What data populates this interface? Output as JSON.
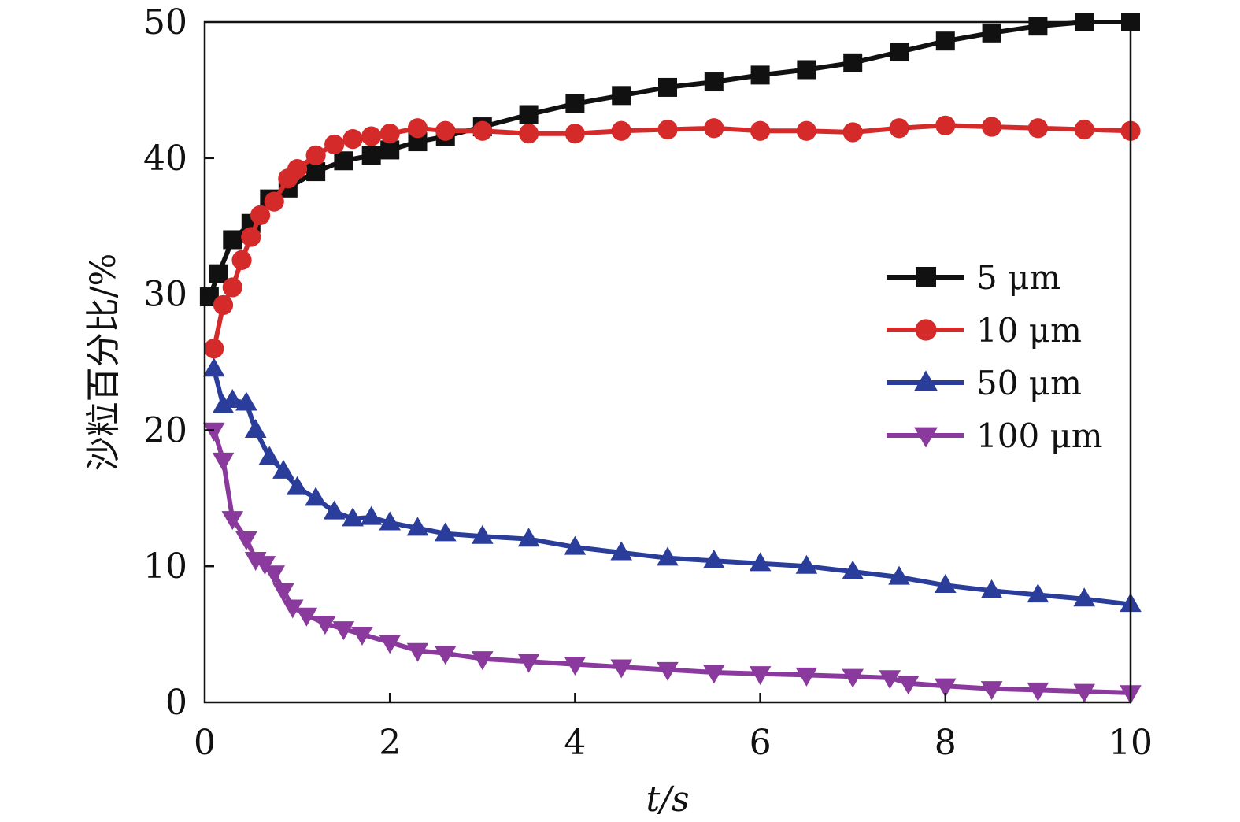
{
  "chart_data": {
    "type": "line",
    "title": "",
    "xlabel": "t/s",
    "ylabel": "沙粒百分比/%",
    "xlim": [
      0,
      10
    ],
    "ylim": [
      0,
      50
    ],
    "xticks": [
      "0",
      "2",
      "4",
      "6",
      "8",
      "10"
    ],
    "yticks": [
      "0",
      "10",
      "20",
      "30",
      "40",
      "50"
    ],
    "grid": false,
    "legend_position": "right-middle",
    "series": [
      {
        "name": "5 μm",
        "color": "#111111",
        "marker": "square",
        "x": [
          0.05,
          0.15,
          0.3,
          0.5,
          0.7,
          0.9,
          1.2,
          1.5,
          1.8,
          2.0,
          2.3,
          2.6,
          3.0,
          3.5,
          4.0,
          4.5,
          5.0,
          5.5,
          6.0,
          6.5,
          7.0,
          7.5,
          8.0,
          8.5,
          9.0,
          9.5,
          10.0
        ],
        "y": [
          29.8,
          31.5,
          34.0,
          35.2,
          37.0,
          37.8,
          39.0,
          39.8,
          40.2,
          40.6,
          41.2,
          41.6,
          42.3,
          43.2,
          44.0,
          44.6,
          45.2,
          45.6,
          46.1,
          46.5,
          47.0,
          47.8,
          48.6,
          49.2,
          49.7,
          50.0,
          50.0
        ]
      },
      {
        "name": "10 μm",
        "color": "#d42a2a",
        "marker": "circle",
        "x": [
          0.1,
          0.2,
          0.3,
          0.4,
          0.5,
          0.6,
          0.75,
          0.9,
          1.0,
          1.2,
          1.4,
          1.6,
          1.8,
          2.0,
          2.3,
          2.6,
          3.0,
          3.5,
          4.0,
          4.5,
          5.0,
          5.5,
          6.0,
          6.5,
          7.0,
          7.5,
          8.0,
          8.5,
          9.0,
          9.5,
          10.0
        ],
        "y": [
          26.0,
          29.2,
          30.5,
          32.5,
          34.2,
          35.8,
          36.8,
          38.5,
          39.2,
          40.2,
          41.0,
          41.4,
          41.6,
          41.8,
          42.2,
          42.0,
          42.0,
          41.8,
          41.8,
          42.0,
          42.1,
          42.2,
          42.0,
          42.0,
          41.9,
          42.2,
          42.4,
          42.3,
          42.2,
          42.1,
          42.0
        ]
      },
      {
        "name": "50 μm",
        "color": "#2a3d9a",
        "marker": "triangle-up",
        "x": [
          0.1,
          0.2,
          0.3,
          0.45,
          0.55,
          0.7,
          0.85,
          1.0,
          1.2,
          1.4,
          1.6,
          1.8,
          2.0,
          2.3,
          2.6,
          3.0,
          3.5,
          4.0,
          4.5,
          5.0,
          5.5,
          6.0,
          6.5,
          7.0,
          7.5,
          8.0,
          8.5,
          9.0,
          9.5,
          10.0
        ],
        "y": [
          24.5,
          21.8,
          22.2,
          22.0,
          20.0,
          18.0,
          17.0,
          15.8,
          15.0,
          14.0,
          13.5,
          13.6,
          13.2,
          12.8,
          12.4,
          12.2,
          12.0,
          11.4,
          11.0,
          10.6,
          10.4,
          10.2,
          10.0,
          9.6,
          9.2,
          8.6,
          8.2,
          7.9,
          7.6,
          7.2
        ]
      },
      {
        "name": "100 μm",
        "color": "#8a3a9c",
        "marker": "triangle-down",
        "x": [
          0.1,
          0.2,
          0.3,
          0.45,
          0.55,
          0.65,
          0.75,
          0.85,
          0.95,
          1.1,
          1.3,
          1.5,
          1.7,
          2.0,
          2.3,
          2.6,
          3.0,
          3.5,
          4.0,
          4.5,
          5.0,
          5.5,
          6.0,
          6.5,
          7.0,
          7.4,
          7.6,
          8.0,
          8.5,
          9.0,
          9.5,
          10.0
        ],
        "y": [
          20.0,
          17.8,
          13.5,
          12.0,
          10.5,
          10.2,
          9.5,
          8.2,
          7.0,
          6.4,
          5.8,
          5.4,
          5.0,
          4.4,
          3.8,
          3.6,
          3.2,
          3.0,
          2.8,
          2.6,
          2.4,
          2.2,
          2.1,
          2.0,
          1.9,
          1.8,
          1.4,
          1.2,
          1.0,
          0.9,
          0.8,
          0.7
        ]
      }
    ]
  }
}
